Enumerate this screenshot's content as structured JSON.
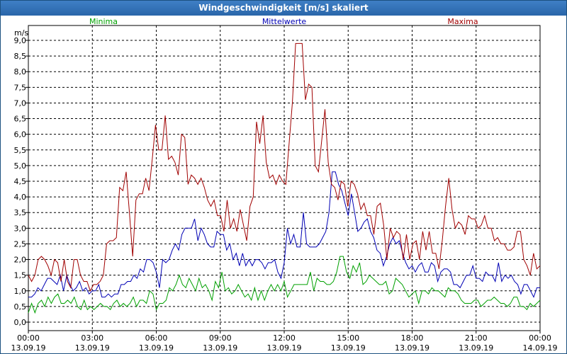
{
  "window_title": "Windgeschwindigkeit [m/s] skaliert",
  "chart_data": {
    "type": "line",
    "title": "Windgeschwindigkeit [m/s] skaliert",
    "ylabel": "m/s",
    "ylim": [
      0,
      9.2
    ],
    "xlim": [
      0,
      24.0
    ],
    "y_ticks": [
      "0,0",
      "0,5",
      "1,0",
      "1,5",
      "2,0",
      "2,5",
      "3,0",
      "3,5",
      "4,0",
      "4,5",
      "5,0",
      "5,5",
      "6,0",
      "6,5",
      "7,0",
      "7,5",
      "8,0",
      "8,5",
      "9,0"
    ],
    "x_ticks": [
      {
        "time": "00:00",
        "date": "13.09.19"
      },
      {
        "time": "03:00",
        "date": "13.09.19"
      },
      {
        "time": "06:00",
        "date": "13.09.19"
      },
      {
        "time": "09:00",
        "date": "13.09.19"
      },
      {
        "time": "12:00",
        "date": "13.09.19"
      },
      {
        "time": "15:00",
        "date": "13.09.19"
      },
      {
        "time": "18:00",
        "date": "13.09.19"
      },
      {
        "time": "21:00",
        "date": "13.09.19"
      },
      {
        "time": "00:00",
        "date": "14.09.19"
      }
    ],
    "colors": {
      "min": "#00a000",
      "mean": "#0000b4",
      "max": "#a00000"
    },
    "series": [
      {
        "name": "Minima",
        "key": "min",
        "values": [
          0.3,
          0.6,
          0.3,
          0.6,
          0.7,
          0.5,
          0.8,
          0.6,
          0.8,
          0.9,
          0.6,
          0.6,
          0.7,
          0.6,
          0.8,
          0.5,
          0.4,
          0.7,
          0.4,
          0.5,
          0.4,
          0.5,
          0.6,
          0.5,
          0.5,
          0.4,
          0.6,
          0.7,
          0.5,
          0.6,
          0.5,
          0.6,
          0.8,
          0.5,
          0.7,
          0.7,
          0.6,
          1.0,
          0.9,
          0.4,
          0.6,
          0.6,
          0.7,
          1.1,
          1.0,
          1.2,
          1.5,
          1.2,
          1.1,
          1.4,
          1.2,
          1.0,
          1.4,
          1.1,
          1.2,
          1.0,
          0.7,
          1.3,
          1.1,
          1.6,
          1.0,
          1.1,
          0.9,
          1.0,
          1.2,
          1.0,
          0.8,
          0.9,
          0.7,
          1.1,
          0.7,
          1.0,
          0.7,
          1.0,
          1.2,
          1.0,
          1.2,
          1.0,
          1.3,
          0.8,
          1.0,
          1.2,
          1.2,
          1.2,
          1.2,
          1.2,
          1.6,
          1.0,
          1.4,
          1.3,
          1.3,
          1.2,
          1.2,
          1.3,
          1.6,
          2.1,
          2.1,
          1.6,
          1.4,
          1.8,
          1.6,
          1.9,
          1.2,
          1.3,
          1.5,
          1.4,
          1.3,
          1.2,
          1.2,
          1.3,
          0.9,
          1.0,
          1.4,
          1.3,
          1.2,
          1.0,
          0.8,
          0.9,
          1.0,
          0.6,
          1.0,
          1.0,
          0.9,
          1.1,
          1.0,
          1.0,
          0.9,
          0.8,
          1.1,
          1.0,
          1.0,
          0.9,
          0.7,
          0.6,
          0.6,
          0.6,
          0.7,
          0.7,
          0.5,
          0.6,
          0.7,
          0.7,
          0.8,
          0.7,
          0.6,
          0.6,
          0.5,
          0.6,
          0.8,
          0.8,
          0.5,
          0.5,
          0.4,
          0.6,
          0.5,
          0.6,
          0.7
        ]
      },
      {
        "name": "Mittelwerte",
        "key": "mean",
        "values": [
          0.8,
          0.8,
          0.9,
          1.1,
          1.0,
          1.2,
          1.4,
          1.4,
          1.3,
          1.2,
          1.5,
          1.0,
          1.5,
          1.2,
          1.0,
          1.1,
          1.3,
          1.0,
          1.1,
          0.9,
          1.0,
          1.0,
          1.2,
          0.8,
          0.8,
          0.9,
          0.8,
          0.9,
          0.9,
          1.2,
          1.2,
          1.3,
          1.3,
          1.5,
          1.4,
          1.7,
          1.6,
          2.0,
          2.0,
          1.9,
          1.6,
          1.1,
          2.0,
          1.9,
          2.0,
          2.3,
          2.5,
          2.3,
          2.8,
          3.0,
          3.0,
          3.0,
          3.3,
          2.6,
          3.0,
          2.8,
          2.5,
          2.4,
          2.4,
          2.9,
          2.8,
          2.8,
          2.3,
          2.5,
          2.0,
          2.2,
          1.8,
          2.2,
          1.8,
          2.0,
          1.8,
          2.0,
          2.0,
          1.9,
          1.7,
          1.9,
          1.9,
          2.0,
          1.6,
          1.4,
          1.9,
          3.0,
          2.5,
          2.8,
          2.4,
          2.4,
          3.5,
          2.5,
          2.4,
          2.4,
          2.4,
          2.5,
          2.7,
          2.9,
          3.5,
          4.8,
          4.8,
          4.4,
          4.2,
          3.8,
          3.4,
          4.1,
          3.5,
          2.9,
          3.0,
          3.2,
          3.3,
          2.9,
          2.7,
          2.3,
          2.2,
          1.8,
          2.1,
          2.5,
          2.7,
          2.5,
          2.6,
          2.2,
          1.9,
          1.7,
          1.8,
          1.6,
          1.8,
          1.9,
          1.6,
          1.6,
          1.9,
          1.8,
          1.3,
          1.6,
          1.7,
          1.7,
          1.6,
          1.2,
          1.2,
          1.1,
          1.3,
          1.5,
          1.5,
          1.8,
          1.4,
          1.4,
          1.3,
          1.6,
          1.5,
          1.5,
          1.3,
          1.9,
          1.3,
          1.5,
          1.4,
          1.5,
          1.3,
          1.2,
          0.9,
          1.2,
          1.2,
          1.0,
          0.8,
          1.1,
          1.1
        ]
      },
      {
        "name": "Maxima",
        "key": "max",
        "values": [
          1.5,
          1.3,
          1.5,
          2.0,
          2.1,
          2.0,
          1.8,
          1.5,
          2.0,
          1.9,
          1.3,
          2.0,
          1.3,
          1.1,
          2.0,
          2.0,
          1.5,
          1.3,
          1.3,
          1.0,
          1.2,
          1.2,
          1.3,
          1.5,
          2.5,
          2.6,
          2.6,
          2.7,
          4.3,
          4.2,
          4.8,
          3.5,
          2.1,
          3.9,
          4.1,
          4.1,
          4.6,
          4.2,
          5.2,
          6.3,
          5.5,
          5.5,
          6.6,
          5.2,
          5.3,
          5.1,
          4.7,
          6.0,
          5.9,
          4.4,
          4.7,
          4.6,
          4.4,
          4.6,
          4.3,
          3.9,
          3.7,
          3.9,
          3.4,
          3.4,
          2.9,
          3.9,
          3.0,
          3.3,
          2.9,
          3.6,
          3.1,
          2.6,
          3.7,
          4.0,
          6.4,
          5.7,
          6.6,
          5.1,
          4.6,
          4.7,
          4.4,
          4.7,
          4.5,
          4.4,
          5.7,
          7.0,
          8.9,
          8.9,
          8.9,
          7.1,
          7.6,
          7.5,
          5.0,
          4.8,
          5.8,
          6.8,
          5.1,
          4.4,
          4.3,
          3.9,
          4.5,
          4.4,
          3.7,
          4.5,
          4.4,
          4.1,
          3.6,
          3.8,
          3.4,
          3.4,
          2.8,
          3.7,
          3.8,
          3.1,
          2.0,
          3.0,
          2.7,
          2.9,
          2.8,
          2.0,
          2.8,
          2.0,
          2.5,
          2.6,
          2.0,
          2.9,
          2.3,
          2.9,
          2.2,
          2.2,
          1.7,
          2.6,
          3.7,
          4.6,
          3.6,
          3.0,
          3.2,
          3.1,
          2.8,
          3.4,
          3.3,
          3.3,
          3.0,
          3.1,
          3.4,
          3.0,
          3.0,
          2.6,
          2.7,
          2.5,
          2.5,
          2.3,
          2.3,
          2.4,
          2.9,
          2.9,
          2.0,
          1.8,
          1.5,
          2.2,
          1.7,
          1.8
        ]
      }
    ]
  }
}
